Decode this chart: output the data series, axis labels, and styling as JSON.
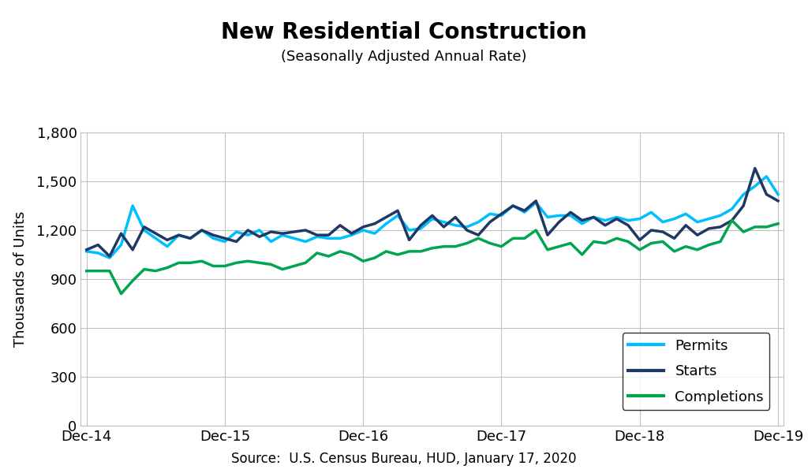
{
  "title": "New Residential Construction",
  "subtitle": "(Seasonally Adjusted Annual Rate)",
  "ylabel": "Thousands of Units",
  "source": "Source:  U.S. Census Bureau, HUD, January 17, 2020",
  "x_labels": [
    "Dec-14",
    "Dec-15",
    "Dec-16",
    "Dec-17",
    "Dec-18",
    "Dec-19"
  ],
  "x_tick_positions": [
    0,
    12,
    24,
    36,
    48,
    60
  ],
  "ylim": [
    0,
    1800
  ],
  "yticks": [
    0,
    300,
    600,
    900,
    1200,
    1500,
    1800
  ],
  "permits_color": "#00BFFF",
  "starts_color": "#1F3864",
  "completions_color": "#00A550",
  "line_width": 2.5,
  "permits": [
    1070,
    1060,
    1030,
    1110,
    1350,
    1200,
    1150,
    1100,
    1170,
    1150,
    1200,
    1150,
    1130,
    1190,
    1170,
    1200,
    1130,
    1170,
    1150,
    1130,
    1160,
    1150,
    1150,
    1170,
    1200,
    1180,
    1240,
    1290,
    1200,
    1210,
    1270,
    1250,
    1230,
    1220,
    1250,
    1300,
    1290,
    1350,
    1310,
    1370,
    1280,
    1290,
    1290,
    1240,
    1280,
    1260,
    1280,
    1260,
    1270,
    1310,
    1250,
    1270,
    1300,
    1250,
    1270,
    1290,
    1330,
    1420,
    1470,
    1530,
    1420
  ],
  "starts": [
    1080,
    1110,
    1040,
    1180,
    1080,
    1220,
    1180,
    1140,
    1170,
    1150,
    1200,
    1170,
    1150,
    1130,
    1200,
    1160,
    1190,
    1180,
    1190,
    1200,
    1170,
    1170,
    1230,
    1180,
    1220,
    1240,
    1280,
    1320,
    1140,
    1230,
    1290,
    1220,
    1280,
    1200,
    1170,
    1250,
    1300,
    1350,
    1320,
    1380,
    1170,
    1250,
    1310,
    1260,
    1280,
    1230,
    1270,
    1230,
    1140,
    1200,
    1190,
    1150,
    1230,
    1170,
    1210,
    1220,
    1260,
    1350,
    1580,
    1420,
    1380
  ],
  "completions": [
    950,
    950,
    950,
    810,
    890,
    960,
    950,
    970,
    1000,
    1000,
    1010,
    980,
    980,
    1000,
    1010,
    1000,
    990,
    960,
    980,
    1000,
    1060,
    1040,
    1070,
    1050,
    1010,
    1030,
    1070,
    1050,
    1070,
    1070,
    1090,
    1100,
    1100,
    1120,
    1150,
    1120,
    1100,
    1150,
    1150,
    1200,
    1080,
    1100,
    1120,
    1050,
    1130,
    1120,
    1150,
    1130,
    1080,
    1120,
    1130,
    1070,
    1100,
    1080,
    1110,
    1130,
    1260,
    1190,
    1220,
    1220,
    1240
  ]
}
